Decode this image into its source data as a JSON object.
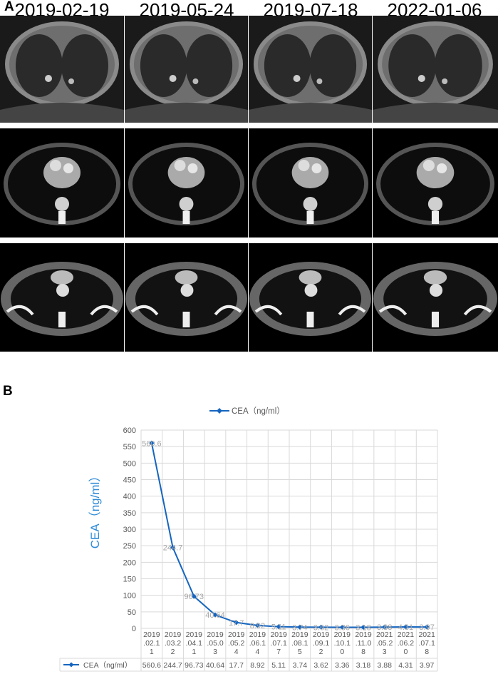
{
  "panel_a": {
    "label": "A",
    "dates": [
      "2019-02-19",
      "2019-05-24",
      "2019-07-18",
      "2022-01-06"
    ]
  },
  "panel_b": {
    "label": "B"
  },
  "chart_data": {
    "type": "line",
    "legend": "CEA（ng/ml）",
    "legend_position": "top",
    "ylabel": "CEA（ng/ml）",
    "ylim": [
      0,
      600
    ],
    "yticks": [
      0,
      50,
      100,
      150,
      200,
      250,
      300,
      350,
      400,
      450,
      500,
      550,
      600
    ],
    "categories": [
      [
        "2019",
        ".02.1",
        "1"
      ],
      [
        "2019",
        ".03.2",
        "2"
      ],
      [
        "2019",
        ".04.1",
        "1"
      ],
      [
        "2019",
        ".05.0",
        "3"
      ],
      [
        "2019",
        ".05.2",
        "4"
      ],
      [
        "2019",
        ".06.1",
        "4"
      ],
      [
        "2019",
        ".07.1",
        "7"
      ],
      [
        "2019",
        ".08.1",
        "5"
      ],
      [
        "2019",
        ".09.1",
        "2"
      ],
      [
        "2019",
        ".10.1",
        "0"
      ],
      [
        "2019",
        ".11.0",
        "8"
      ],
      [
        "2021",
        ".05.2",
        "3"
      ],
      [
        "2021",
        ".06.2",
        "0"
      ],
      [
        "2021",
        ".07.1",
        "8"
      ]
    ],
    "series": [
      {
        "name": "CEA（ng/ml）",
        "values": [
          560.6,
          244.7,
          96.73,
          40.64,
          17.7,
          8.92,
          5.11,
          3.74,
          3.62,
          3.36,
          3.18,
          3.88,
          4.31,
          3.97
        ],
        "value_labels": [
          "560.6",
          "244.7",
          "96.73",
          "40.64",
          "17.7",
          "8.92",
          "5.11",
          "3.74",
          "3.62",
          "3.36",
          "3.18",
          "3.88",
          "4.31",
          "3.97"
        ]
      }
    ],
    "grid": true,
    "data_table": true,
    "colors": {
      "line": "#1565C0",
      "grid": "#d9d9d9",
      "tick_text": "#595959",
      "value_label": "#a6a6a6",
      "ylabel": "#2E8BD7"
    }
  }
}
